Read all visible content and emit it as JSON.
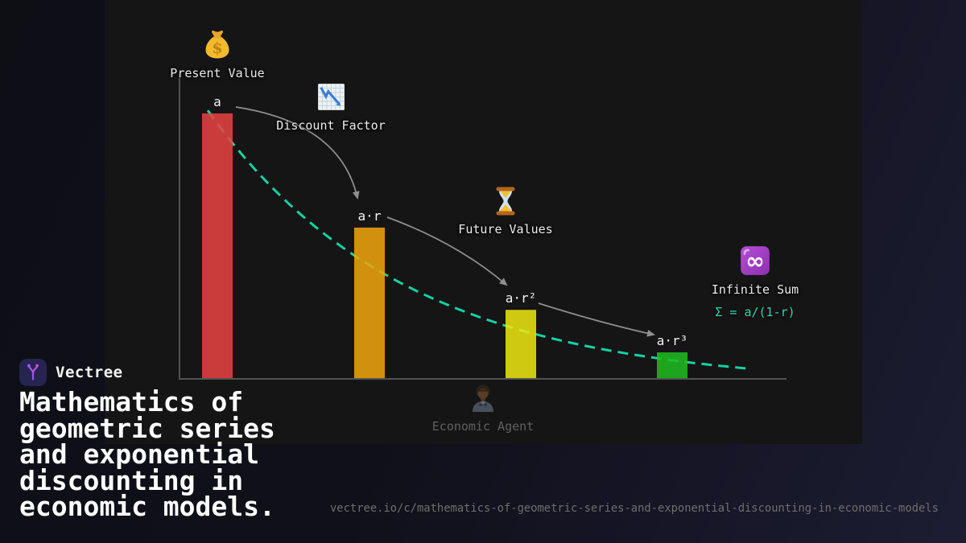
{
  "brand": {
    "name": "Vectree"
  },
  "title": "Mathematics of\ngeometric series\nand exponential\ndiscounting in\neconomic models.",
  "footer_url": "vectree.io/c/mathematics-of-geometric-series-and-exponential-discounting-in-economic-models",
  "chart_data": {
    "type": "bar",
    "categories": [
      "a",
      "a·r",
      "a·r²",
      "a·r³"
    ],
    "values": [
      1.0,
      0.57,
      0.26,
      0.1
    ],
    "bar_colors": [
      "#ea4242",
      "#f2a70d",
      "#f0ea11",
      "#1fbf1f"
    ],
    "bar_label_color": "#f2f2f2",
    "axis_color": "#525252",
    "arrow_color": "#8f8f8f",
    "grid": "off",
    "legend": "none",
    "curve": {
      "type": "exponential-decay",
      "dashed": true,
      "color": "#12d2a4",
      "description": "discount curve through bar tops toward asymptote"
    },
    "annotations": [
      {
        "icon": "money-bag-icon",
        "label": "Present Value"
      },
      {
        "icon": "chart-decreasing-icon",
        "label": "Discount Factor"
      },
      {
        "icon": "hourglass-icon",
        "label": "Future Values"
      },
      {
        "icon": "infinity-icon",
        "label": "Infinite Sum",
        "formula": "Σ = a/(1-r)",
        "formula_color": "#2bdbb0"
      },
      {
        "icon": "office-worker-icon",
        "label": "Economic Agent",
        "dimmed": true
      }
    ]
  }
}
